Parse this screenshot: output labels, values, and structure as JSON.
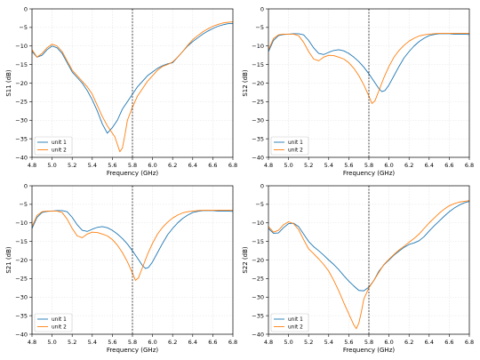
{
  "figure": {
    "background": "#ffffff"
  },
  "chart_data": [
    {
      "type": "line",
      "ylabel": "S11 (dB)",
      "xlabel": "Frequency (GHz)",
      "xlim": [
        4.8,
        6.8
      ],
      "ylim": [
        -40,
        0
      ],
      "xticks": [
        "4.8",
        "5.0",
        "5.2",
        "5.4",
        "5.6",
        "5.8",
        "6.0",
        "6.2",
        "6.4",
        "6.6",
        "6.8"
      ],
      "yticks": [
        "0",
        "−5",
        "−10",
        "−15",
        "−20",
        "−25",
        "−30",
        "−35",
        "−40"
      ],
      "grid": true,
      "legend": "lower left",
      "marker_line": {
        "x": 5.8,
        "style": "dashed",
        "color": "#000000"
      },
      "series": [
        {
          "name": "unit 1",
          "color": "#1f77b4",
          "x": [
            4.8,
            4.85,
            4.9,
            4.95,
            5.0,
            5.05,
            5.1,
            5.15,
            5.2,
            5.25,
            5.3,
            5.35,
            5.4,
            5.45,
            5.5,
            5.55,
            5.6,
            5.65,
            5.7,
            5.75,
            5.8,
            5.85,
            5.9,
            5.95,
            6.0,
            6.05,
            6.1,
            6.15,
            6.2,
            6.25,
            6.3,
            6.35,
            6.4,
            6.45,
            6.5,
            6.55,
            6.6,
            6.65,
            6.7,
            6.75,
            6.8
          ],
          "y": [
            -11.5,
            -13,
            -12.5,
            -11,
            -10,
            -10.5,
            -12,
            -14.5,
            -17,
            -18.5,
            -20,
            -22,
            -24.5,
            -27.5,
            -31,
            -33.5,
            -32,
            -30,
            -27,
            -25,
            -23,
            -21,
            -19.5,
            -18,
            -17,
            -16,
            -15.3,
            -14.8,
            -14.5,
            -13,
            -11.5,
            -10,
            -8.8,
            -7.8,
            -6.8,
            -6,
            -5.3,
            -4.7,
            -4.3,
            -4,
            -3.9
          ]
        },
        {
          "name": "unit 2",
          "color": "#ff7f0e",
          "x": [
            4.8,
            4.85,
            4.9,
            4.95,
            5.0,
            5.05,
            5.1,
            5.15,
            5.2,
            5.25,
            5.3,
            5.35,
            5.4,
            5.45,
            5.5,
            5.55,
            5.6,
            5.625,
            5.65,
            5.675,
            5.7,
            5.725,
            5.75,
            5.8,
            5.85,
            5.9,
            5.95,
            6.0,
            6.05,
            6.1,
            6.15,
            6.2,
            6.25,
            6.3,
            6.35,
            6.4,
            6.45,
            6.5,
            6.55,
            6.6,
            6.65,
            6.7,
            6.75,
            6.8
          ],
          "y": [
            -11,
            -13,
            -12,
            -10.5,
            -9.5,
            -10,
            -11.5,
            -14,
            -16.5,
            -18,
            -19.5,
            -21,
            -23,
            -26,
            -29,
            -31.5,
            -33.5,
            -34.5,
            -36.5,
            -38.5,
            -37.5,
            -34,
            -30,
            -26.5,
            -23.5,
            -21.5,
            -19.5,
            -18,
            -16.5,
            -15.5,
            -15,
            -14.3,
            -13,
            -11.5,
            -9.8,
            -8.3,
            -7.2,
            -6.2,
            -5.4,
            -4.7,
            -4.2,
            -3.8,
            -3.6,
            -3.5
          ]
        }
      ]
    },
    {
      "type": "line",
      "ylabel": "S12 (dB)",
      "xlabel": "Frequency (GHz)",
      "xlim": [
        4.8,
        6.8
      ],
      "ylim": [
        -40,
        0
      ],
      "xticks": [
        "4.8",
        "5.0",
        "5.2",
        "5.4",
        "5.6",
        "5.8",
        "6.0",
        "6.2",
        "6.4",
        "6.6",
        "6.8"
      ],
      "yticks": [
        "0",
        "−5",
        "−10",
        "−15",
        "−20",
        "−25",
        "−30",
        "−35",
        "−40"
      ],
      "grid": true,
      "legend": "lower left",
      "marker_line": {
        "x": 5.8,
        "style": "dashed",
        "color": "#000000"
      },
      "series": [
        {
          "name": "unit 1",
          "color": "#1f77b4",
          "x": [
            4.8,
            4.85,
            4.9,
            4.95,
            5.0,
            5.05,
            5.1,
            5.15,
            5.2,
            5.25,
            5.3,
            5.35,
            5.4,
            5.45,
            5.5,
            5.55,
            5.6,
            5.65,
            5.7,
            5.75,
            5.8,
            5.85,
            5.9,
            5.93,
            5.96,
            6.0,
            6.05,
            6.1,
            6.15,
            6.2,
            6.25,
            6.3,
            6.35,
            6.4,
            6.45,
            6.5,
            6.55,
            6.6,
            6.65,
            6.7,
            6.75,
            6.8
          ],
          "y": [
            -11.5,
            -8.5,
            -7.2,
            -6.9,
            -6.8,
            -6.7,
            -6.7,
            -7,
            -8.5,
            -10.5,
            -12,
            -12.3,
            -11.7,
            -11.2,
            -11,
            -11.3,
            -12,
            -13,
            -14.2,
            -15.7,
            -17.5,
            -19.5,
            -21.5,
            -22.3,
            -22,
            -20.5,
            -18,
            -15.5,
            -13.2,
            -11.5,
            -10,
            -8.8,
            -7.9,
            -7.2,
            -6.9,
            -6.7,
            -6.7,
            -6.7,
            -6.8,
            -6.8,
            -6.8,
            -6.9
          ]
        },
        {
          "name": "unit 2",
          "color": "#ff7f0e",
          "x": [
            4.8,
            4.85,
            4.9,
            4.95,
            5.0,
            5.05,
            5.1,
            5.15,
            5.2,
            5.25,
            5.3,
            5.35,
            5.4,
            5.45,
            5.5,
            5.55,
            5.6,
            5.65,
            5.7,
            5.75,
            5.8,
            5.83,
            5.86,
            5.9,
            5.95,
            6.0,
            6.05,
            6.1,
            6.15,
            6.2,
            6.25,
            6.3,
            6.35,
            6.4,
            6.45,
            6.5,
            6.55,
            6.6,
            6.65,
            6.7,
            6.75,
            6.8
          ],
          "y": [
            -11,
            -8,
            -7,
            -6.8,
            -6.8,
            -6.8,
            -7.2,
            -9,
            -11.5,
            -13.5,
            -14,
            -13,
            -12.5,
            -12.6,
            -13,
            -13.5,
            -14.5,
            -16,
            -18,
            -20.5,
            -23.5,
            -25.5,
            -24.8,
            -22,
            -18.5,
            -15.5,
            -13,
            -11.2,
            -9.8,
            -8.7,
            -7.9,
            -7.3,
            -7,
            -6.8,
            -6.7,
            -6.6,
            -6.6,
            -6.6,
            -6.6,
            -6.6,
            -6.6,
            -6.6
          ]
        }
      ]
    },
    {
      "type": "line",
      "ylabel": "S21 (dB)",
      "xlabel": "Frequency (GHz)",
      "xlim": [
        4.8,
        6.8
      ],
      "ylim": [
        -40,
        0
      ],
      "xticks": [
        "4.8",
        "5.0",
        "5.2",
        "5.4",
        "5.6",
        "5.8",
        "6.0",
        "6.2",
        "6.4",
        "6.6",
        "6.8"
      ],
      "yticks": [
        "0",
        "−5",
        "−10",
        "−15",
        "−20",
        "−25",
        "−30",
        "−35",
        "−40"
      ],
      "grid": true,
      "legend": "lower left",
      "marker_line": {
        "x": 5.8,
        "style": "dashed",
        "color": "#000000"
      },
      "series": [
        {
          "name": "unit 1",
          "color": "#1f77b4",
          "x": [
            4.8,
            4.85,
            4.9,
            4.95,
            5.0,
            5.05,
            5.1,
            5.15,
            5.2,
            5.25,
            5.3,
            5.35,
            5.4,
            5.45,
            5.5,
            5.55,
            5.6,
            5.65,
            5.7,
            5.75,
            5.8,
            5.85,
            5.9,
            5.93,
            5.96,
            6.0,
            6.05,
            6.1,
            6.15,
            6.2,
            6.25,
            6.3,
            6.35,
            6.4,
            6.45,
            6.5,
            6.55,
            6.6,
            6.65,
            6.7,
            6.75,
            6.8
          ],
          "y": [
            -11.5,
            -8.5,
            -7.2,
            -6.9,
            -6.8,
            -6.7,
            -6.7,
            -7,
            -8.5,
            -10.5,
            -12,
            -12.3,
            -11.7,
            -11.2,
            -11,
            -11.3,
            -12,
            -13,
            -14.2,
            -15.7,
            -17.5,
            -19.5,
            -21.5,
            -22.3,
            -22,
            -20.5,
            -18,
            -15.5,
            -13.2,
            -11.5,
            -10,
            -8.8,
            -7.9,
            -7.2,
            -6.9,
            -6.7,
            -6.7,
            -6.7,
            -6.8,
            -6.8,
            -6.8,
            -6.9
          ]
        },
        {
          "name": "unit 2",
          "color": "#ff7f0e",
          "x": [
            4.8,
            4.85,
            4.9,
            4.95,
            5.0,
            5.05,
            5.1,
            5.15,
            5.2,
            5.25,
            5.3,
            5.35,
            5.4,
            5.45,
            5.5,
            5.55,
            5.6,
            5.65,
            5.7,
            5.75,
            5.8,
            5.83,
            5.86,
            5.9,
            5.95,
            6.0,
            6.05,
            6.1,
            6.15,
            6.2,
            6.25,
            6.3,
            6.35,
            6.4,
            6.45,
            6.5,
            6.55,
            6.6,
            6.65,
            6.7,
            6.75,
            6.8
          ],
          "y": [
            -11,
            -8,
            -7,
            -6.8,
            -6.8,
            -6.8,
            -7.2,
            -9,
            -11.5,
            -13.5,
            -14,
            -13,
            -12.5,
            -12.6,
            -13,
            -13.5,
            -14.5,
            -16,
            -18,
            -20.5,
            -23.5,
            -25.5,
            -24.8,
            -22,
            -18.5,
            -15.5,
            -13,
            -11.2,
            -9.8,
            -8.7,
            -7.9,
            -7.3,
            -7,
            -6.8,
            -6.7,
            -6.6,
            -6.6,
            -6.6,
            -6.6,
            -6.6,
            -6.6,
            -6.6
          ]
        }
      ]
    },
    {
      "type": "line",
      "ylabel": "S22 (dB)",
      "xlabel": "Frequency (GHz)",
      "xlim": [
        4.8,
        6.8
      ],
      "ylim": [
        -40,
        0
      ],
      "xticks": [
        "4.8",
        "5.0",
        "5.2",
        "5.4",
        "5.6",
        "5.8",
        "6.0",
        "6.2",
        "6.4",
        "6.6",
        "6.8"
      ],
      "yticks": [
        "0",
        "−5",
        "−10",
        "−15",
        "−20",
        "−25",
        "−30",
        "−35",
        "−40"
      ],
      "grid": true,
      "legend": "lower left",
      "marker_line": {
        "x": 5.8,
        "style": "dashed",
        "color": "#000000"
      },
      "series": [
        {
          "name": "unit 1",
          "color": "#1f77b4",
          "x": [
            4.8,
            4.85,
            4.9,
            4.95,
            5.0,
            5.05,
            5.1,
            5.15,
            5.2,
            5.25,
            5.3,
            5.35,
            5.4,
            5.45,
            5.5,
            5.55,
            5.6,
            5.65,
            5.7,
            5.75,
            5.8,
            5.85,
            5.9,
            5.95,
            6.0,
            6.05,
            6.1,
            6.15,
            6.2,
            6.25,
            6.3,
            6.35,
            6.4,
            6.45,
            6.5,
            6.55,
            6.6,
            6.65,
            6.7,
            6.75,
            6.8
          ],
          "y": [
            -11.5,
            -12.8,
            -12.7,
            -11.3,
            -10.2,
            -10.1,
            -11,
            -13,
            -15,
            -16.4,
            -17.5,
            -18.7,
            -20,
            -21.2,
            -22.6,
            -24.2,
            -25.7,
            -27,
            -28.2,
            -28.3,
            -27.3,
            -25.5,
            -23,
            -21.3,
            -20,
            -18.7,
            -17.6,
            -16.6,
            -15.8,
            -15.4,
            -14.8,
            -13.7,
            -12.2,
            -10.8,
            -9.5,
            -8.2,
            -7,
            -6,
            -5.2,
            -4.6,
            -4.2
          ]
        },
        {
          "name": "unit 2",
          "color": "#ff7f0e",
          "x": [
            4.8,
            4.85,
            4.9,
            4.95,
            5.0,
            5.05,
            5.1,
            5.15,
            5.2,
            5.25,
            5.3,
            5.35,
            5.4,
            5.45,
            5.5,
            5.55,
            5.6,
            5.625,
            5.65,
            5.675,
            5.7,
            5.725,
            5.75,
            5.8,
            5.85,
            5.9,
            5.95,
            6.0,
            6.05,
            6.1,
            6.15,
            6.2,
            6.25,
            6.3,
            6.35,
            6.4,
            6.45,
            6.5,
            6.55,
            6.6,
            6.65,
            6.7,
            6.75,
            6.8
          ],
          "y": [
            -11,
            -12.5,
            -12,
            -10.5,
            -9.7,
            -10.2,
            -11.8,
            -14.5,
            -17,
            -18.3,
            -19.7,
            -21.2,
            -23,
            -25.5,
            -28.3,
            -31.5,
            -34.5,
            -36,
            -37.5,
            -38.5,
            -37,
            -34,
            -30.5,
            -27.5,
            -25.5,
            -23.3,
            -21.2,
            -19.8,
            -18.5,
            -17.3,
            -16.3,
            -15.2,
            -14.2,
            -13,
            -11.5,
            -10,
            -8.7,
            -7.4,
            -6.3,
            -5.4,
            -4.8,
            -4.4,
            -4.2,
            -4
          ]
        }
      ]
    }
  ]
}
